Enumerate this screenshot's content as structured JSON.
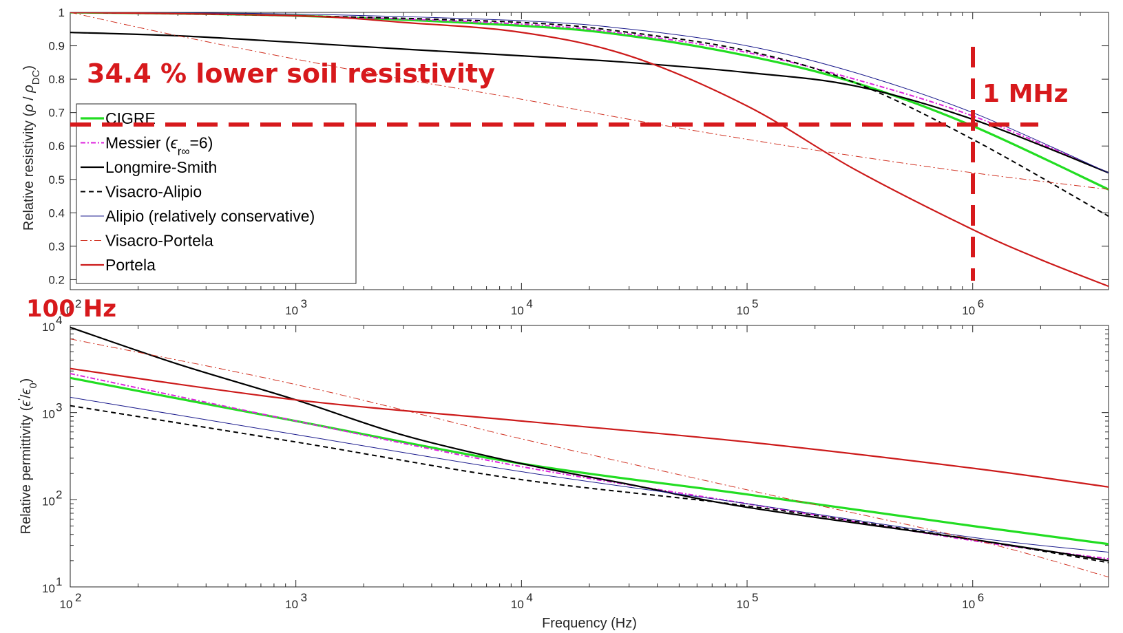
{
  "annotations": {
    "lower_resistivity": "34.4 % lower soil resistivity",
    "freq_1mhz": "1 MHz",
    "freq_100hz": "100 Hz"
  },
  "colors": {
    "CIGRE": "#22dd22",
    "Messier": "#dd22dd",
    "Longmire-Smith": "#000000",
    "Visacro-Alipio": "#000000",
    "Alipio": "#1a1a8c",
    "Visacro-Portela": "#d03020",
    "Portela": "#cc1a1a",
    "annotation": "#d7191c"
  },
  "chart_data": [
    {
      "type": "line",
      "xlabel": "",
      "ylabel": "Relative resistivity (ρ / ρDC)",
      "xscale": "log",
      "xlim": [
        100,
        4000000
      ],
      "ylim": [
        0.17,
        1.0
      ],
      "yticks": [
        "0.2",
        "0.3",
        "0.4",
        "0.5",
        "0.6",
        "0.7",
        "0.8",
        "0.9",
        "1"
      ],
      "xticks": [
        {
          "label": "10",
          "exp": "2",
          "value": 100
        },
        {
          "label": "10",
          "exp": "3",
          "value": 1000
        },
        {
          "label": "10",
          "exp": "4",
          "value": 10000
        },
        {
          "label": "10",
          "exp": "5",
          "value": 100000
        },
        {
          "label": "10",
          "exp": "6",
          "value": 1000000
        }
      ],
      "legend_position": "left",
      "series": [
        {
          "name": "CIGRE",
          "style": "solid-thick",
          "x": [
            100,
            1000,
            10000,
            30000,
            100000,
            300000,
            1000000,
            4000000
          ],
          "y": [
            1.0,
            0.99,
            0.96,
            0.93,
            0.87,
            0.79,
            0.66,
            0.47
          ]
        },
        {
          "name": "Messier (ϵr∞=6)",
          "style": "dashdot",
          "x": [
            100,
            1000,
            10000,
            30000,
            100000,
            300000,
            1000000,
            4000000
          ],
          "y": [
            1.0,
            0.99,
            0.965,
            0.935,
            0.88,
            0.8,
            0.69,
            0.52
          ]
        },
        {
          "name": "Longmire-Smith",
          "style": "solid",
          "x": [
            100,
            300,
            1000,
            3000,
            10000,
            30000,
            100000,
            300000,
            1000000,
            4000000
          ],
          "y": [
            0.94,
            0.93,
            0.91,
            0.89,
            0.87,
            0.85,
            0.82,
            0.78,
            0.68,
            0.52
          ]
        },
        {
          "name": "Visacro-Alipio",
          "style": "dashed",
          "x": [
            100,
            1000,
            10000,
            30000,
            100000,
            300000,
            1000000,
            4000000
          ],
          "y": [
            1.0,
            0.99,
            0.97,
            0.94,
            0.885,
            0.79,
            0.62,
            0.39
          ]
        },
        {
          "name": "Alipio (relatively conservative)",
          "style": "thin",
          "x": [
            100,
            1000,
            10000,
            30000,
            100000,
            300000,
            1000000,
            4000000
          ],
          "y": [
            1.0,
            0.995,
            0.975,
            0.95,
            0.9,
            0.82,
            0.7,
            0.52
          ]
        },
        {
          "name": "Visacro-Portela",
          "style": "dashdot-thin",
          "x": [
            100,
            300,
            1000,
            3000,
            10000,
            30000,
            100000,
            300000,
            1000000,
            4000000
          ],
          "y": [
            1.0,
            0.93,
            0.86,
            0.8,
            0.74,
            0.68,
            0.62,
            0.57,
            0.52,
            0.47
          ]
        },
        {
          "name": "Portela",
          "style": "solid",
          "x": [
            100,
            1000,
            3000,
            10000,
            30000,
            100000,
            300000,
            1000000,
            2000000,
            4000000
          ],
          "y": [
            1.0,
            0.99,
            0.97,
            0.94,
            0.87,
            0.72,
            0.53,
            0.35,
            0.26,
            0.18
          ]
        }
      ]
    },
    {
      "type": "line",
      "xlabel": "Frequency (Hz)",
      "ylabel": "Relative permittivity (ϵ'/ϵ0)",
      "xscale": "log",
      "yscale": "log",
      "xlim": [
        100,
        4000000
      ],
      "ylim": [
        10,
        10000
      ],
      "yticks": [
        {
          "label": "10",
          "exp": "1",
          "value": 10
        },
        {
          "label": "10",
          "exp": "2",
          "value": 100
        },
        {
          "label": "10",
          "exp": "3",
          "value": 1000
        },
        {
          "label": "10",
          "exp": "4",
          "value": 10000
        }
      ],
      "xticks": [
        {
          "label": "10",
          "exp": "2",
          "value": 100
        },
        {
          "label": "10",
          "exp": "3",
          "value": 1000
        },
        {
          "label": "10",
          "exp": "4",
          "value": 10000
        },
        {
          "label": "10",
          "exp": "5",
          "value": 100000
        },
        {
          "label": "10",
          "exp": "6",
          "value": 1000000
        }
      ],
      "series": [
        {
          "name": "CIGRE",
          "style": "solid-thick",
          "x": [
            100,
            1000,
            10000,
            100000,
            1000000,
            4000000
          ],
          "y": [
            2500,
            800,
            260,
            115,
            50,
            31
          ]
        },
        {
          "name": "Messier (ϵr∞=6)",
          "style": "dashdot",
          "x": [
            100,
            1000,
            10000,
            100000,
            1000000,
            4000000
          ],
          "y": [
            2800,
            800,
            240,
            90,
            34,
            21
          ]
        },
        {
          "name": "Longmire-Smith",
          "style": "solid",
          "x": [
            100,
            300,
            1000,
            3000,
            10000,
            30000,
            100000,
            1000000,
            4000000
          ],
          "y": [
            9500,
            3600,
            1400,
            550,
            260,
            150,
            82,
            35,
            20
          ]
        },
        {
          "name": "Visacro-Alipio",
          "style": "dashed",
          "x": [
            100,
            1000,
            10000,
            100000,
            1000000,
            4000000
          ],
          "y": [
            1200,
            460,
            170,
            85,
            35,
            19
          ]
        },
        {
          "name": "Alipio (relatively conservative)",
          "style": "thin",
          "x": [
            100,
            1000,
            10000,
            100000,
            1000000,
            4000000
          ],
          "y": [
            1500,
            560,
            210,
            90,
            37,
            25
          ]
        },
        {
          "name": "Visacro-Portela",
          "style": "dashdot-thin",
          "x": [
            100,
            1000,
            10000,
            100000,
            1000000,
            4000000
          ],
          "y": [
            7000,
            2100,
            500,
            130,
            35,
            13
          ]
        },
        {
          "name": "Portela",
          "style": "solid",
          "x": [
            100,
            1000,
            10000,
            100000,
            1000000,
            4000000
          ],
          "y": [
            3200,
            1400,
            800,
            460,
            230,
            140
          ]
        }
      ]
    }
  ]
}
